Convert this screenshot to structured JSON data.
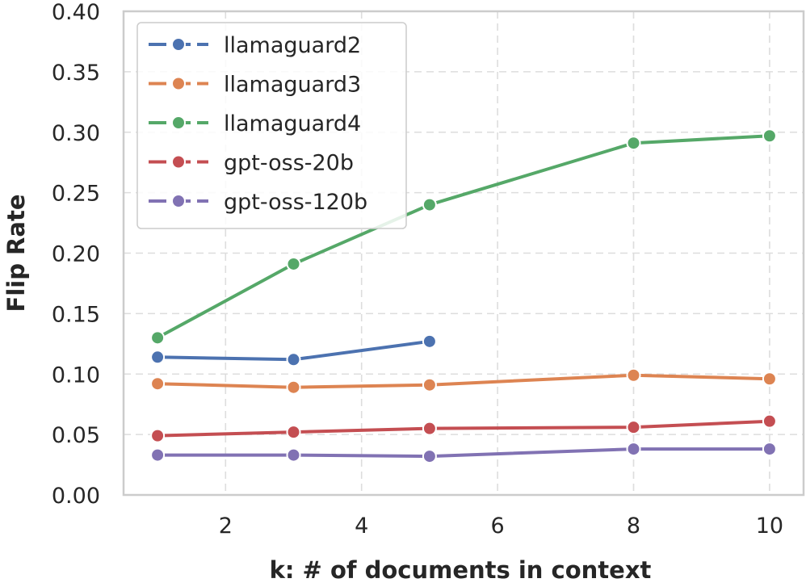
{
  "chart_data": {
    "type": "line",
    "title": "",
    "xlabel": "k: # of documents in context",
    "ylabel": "Flip Rate",
    "xlim": [
      0.5,
      10.5
    ],
    "ylim": [
      0.0,
      0.4
    ],
    "xticks": [
      2,
      4,
      6,
      8,
      10
    ],
    "xtick_labels": [
      "2",
      "4",
      "6",
      "8",
      "10"
    ],
    "yticks": [
      0.0,
      0.05,
      0.1,
      0.15,
      0.2,
      0.25,
      0.3,
      0.35,
      0.4
    ],
    "ytick_labels": [
      "0.00",
      "0.05",
      "0.10",
      "0.15",
      "0.20",
      "0.25",
      "0.30",
      "0.35",
      "0.40"
    ],
    "grid": true,
    "legend_position": "top-left",
    "series": [
      {
        "name": "llamaguard2",
        "color": "#4c72b0",
        "x": [
          1,
          3,
          5
        ],
        "values": [
          0.114,
          0.112,
          0.127
        ]
      },
      {
        "name": "llamaguard3",
        "color": "#dd8452",
        "x": [
          1,
          3,
          5,
          8,
          10
        ],
        "values": [
          0.092,
          0.089,
          0.091,
          0.099,
          0.096
        ]
      },
      {
        "name": "llamaguard4",
        "color": "#55a868",
        "x": [
          1,
          3,
          5,
          8,
          10
        ],
        "values": [
          0.13,
          0.191,
          0.24,
          0.291,
          0.297
        ]
      },
      {
        "name": "gpt-oss-20b",
        "color": "#c44e52",
        "x": [
          1,
          3,
          5,
          8,
          10
        ],
        "values": [
          0.049,
          0.052,
          0.055,
          0.056,
          0.061
        ]
      },
      {
        "name": "gpt-oss-120b",
        "color": "#8172b3",
        "x": [
          1,
          3,
          5,
          8,
          10
        ],
        "values": [
          0.033,
          0.033,
          0.032,
          0.038,
          0.038
        ]
      }
    ]
  }
}
